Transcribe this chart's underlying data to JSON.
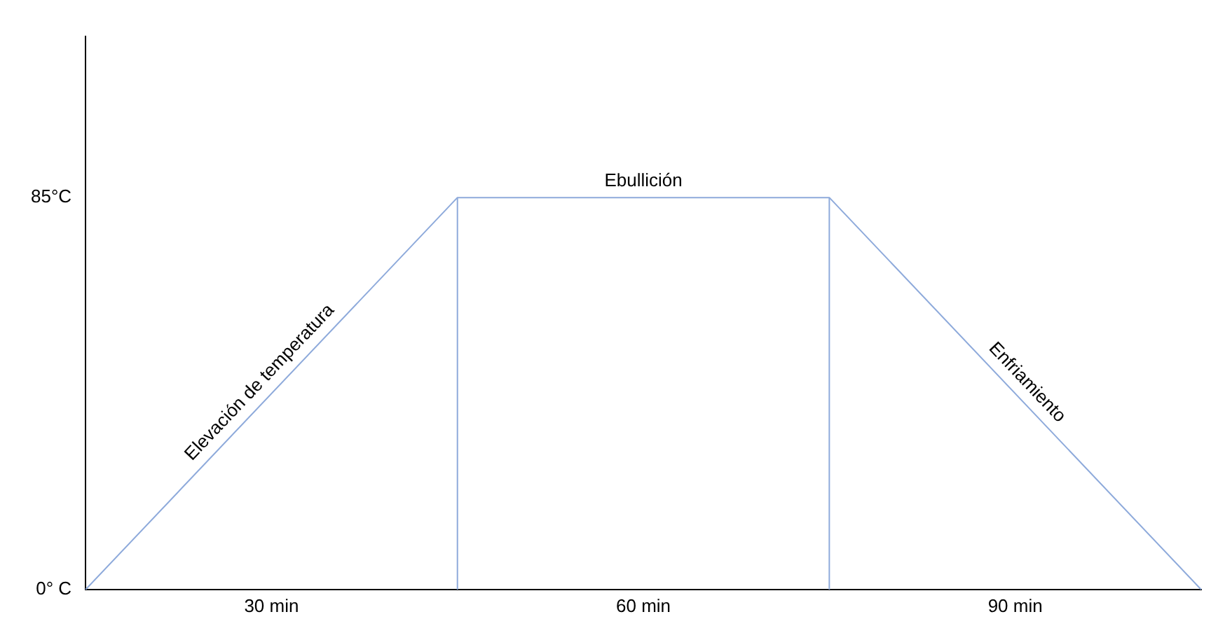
{
  "chart_data": {
    "type": "line",
    "categories": [
      null,
      null,
      null,
      null
    ],
    "series": [
      {
        "color": "#8eaadb",
        "values": [
          0,
          85,
          85,
          0
        ]
      }
    ],
    "ylim": [
      0,
      120
    ],
    "yticks": [
      {
        "value": 0,
        "label": "0° C"
      },
      {
        "value": 85,
        "label": "85°C"
      }
    ],
    "annotations": [
      "Elevación de temperatura",
      "Ebullición",
      "Enfriamiento",
      "30 min",
      "60 min",
      "90 min"
    ],
    "grid": false,
    "legend": false,
    "marker": "none",
    "line_style": "solid"
  }
}
